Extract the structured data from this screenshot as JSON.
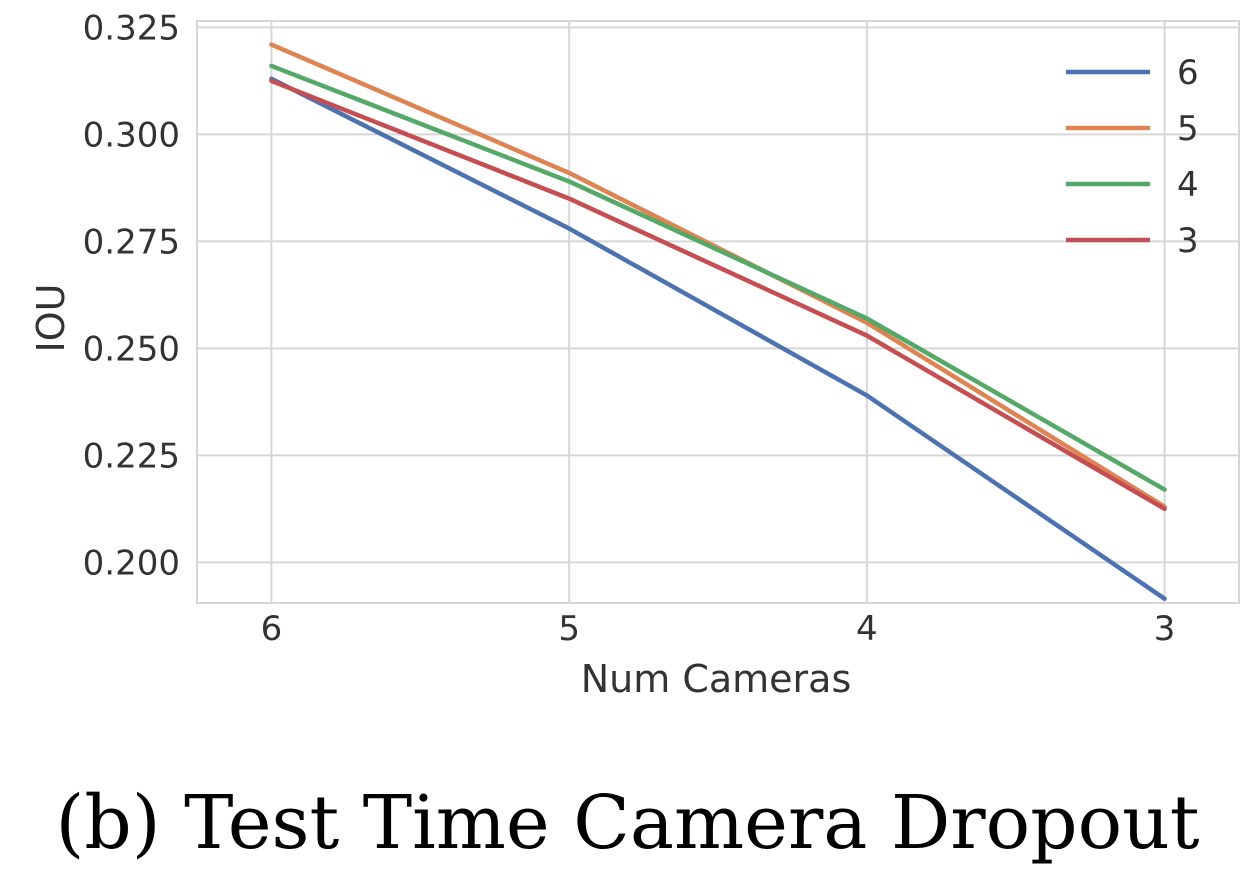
{
  "caption": "(b) Test Time Camera Dropout",
  "colors": {
    "grid": "#d6d6d6",
    "series": [
      "#4c72b0",
      "#dd8452",
      "#55a868",
      "#c44e52"
    ]
  },
  "chart_data": {
    "type": "line",
    "title": "",
    "xlabel": "Num Cameras",
    "ylabel": "IOU",
    "x": [
      "6",
      "5",
      "4",
      "3"
    ],
    "xlim": [
      6.25,
      2.75
    ],
    "ylim": [
      0.1905,
      0.3265
    ],
    "yticks": [
      "0.200",
      "0.225",
      "0.250",
      "0.275",
      "0.300",
      "0.325"
    ],
    "grid": true,
    "legend_position": "top-right",
    "series": [
      {
        "name": "6",
        "values": [
          0.313,
          0.278,
          0.239,
          0.1915
        ]
      },
      {
        "name": "5",
        "values": [
          0.321,
          0.291,
          0.256,
          0.213
        ]
      },
      {
        "name": "4",
        "values": [
          0.316,
          0.289,
          0.257,
          0.217
        ]
      },
      {
        "name": "3",
        "values": [
          0.3125,
          0.285,
          0.253,
          0.2125
        ]
      }
    ]
  }
}
